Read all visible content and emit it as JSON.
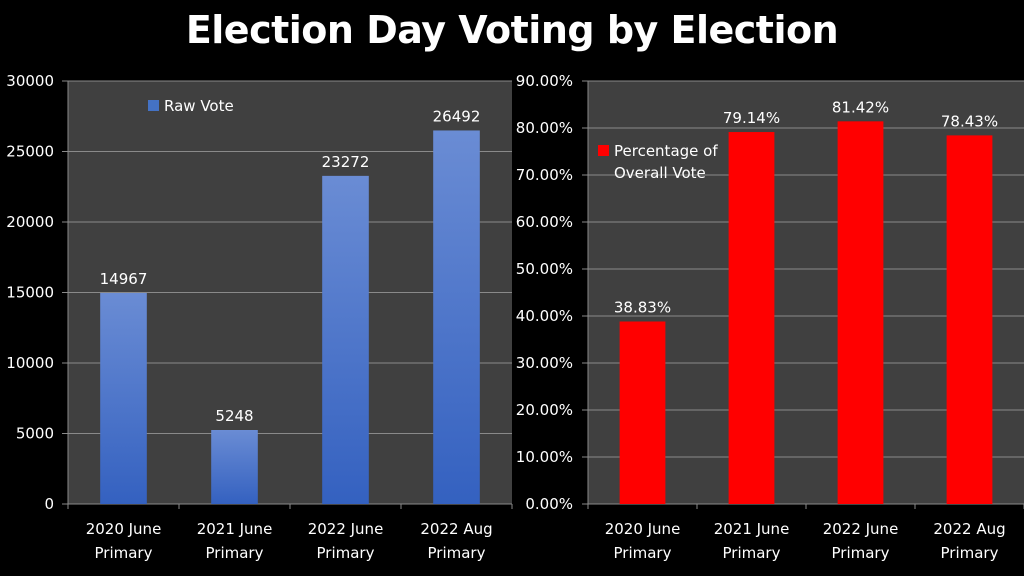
{
  "title": "Election Day Voting by Election",
  "chart_data": [
    {
      "type": "bar",
      "title": "",
      "categories": [
        [
          "2020 June",
          "Primary"
        ],
        [
          "2021 June",
          "Primary"
        ],
        [
          "2022 June",
          "Primary"
        ],
        [
          "2022 Aug",
          "Primary"
        ]
      ],
      "series": [
        {
          "name": "Raw Vote",
          "values": [
            14967,
            5248,
            23272,
            26492
          ],
          "color": "#4472C4"
        }
      ],
      "data_labels": [
        "14967",
        "5248",
        "23272",
        "26492"
      ],
      "yticks": [
        0,
        5000,
        10000,
        15000,
        20000,
        25000,
        30000
      ],
      "ytick_labels": [
        "0",
        "5000",
        "10000",
        "15000",
        "20000",
        "25000",
        "30000"
      ],
      "ylim": [
        0,
        30000
      ],
      "legend": "top-left",
      "grid": true,
      "xlabel": "",
      "ylabel": ""
    },
    {
      "type": "bar",
      "title": "",
      "categories": [
        [
          "2020 June",
          "Primary"
        ],
        [
          "2021 June",
          "Primary"
        ],
        [
          "2022 June",
          "Primary"
        ],
        [
          "2022 Aug",
          "Primary"
        ]
      ],
      "series": [
        {
          "name": "Percentage of Overall Vote",
          "legend_lines": [
            "Percentage of",
            "Overall Vote"
          ],
          "values": [
            38.83,
            79.14,
            81.42,
            78.43
          ],
          "color": "#FF0000"
        }
      ],
      "data_labels": [
        "38.83%",
        "79.14%",
        "81.42%",
        "78.43%"
      ],
      "yticks": [
        0,
        10,
        20,
        30,
        40,
        50,
        60,
        70,
        80,
        90
      ],
      "ytick_labels": [
        "0.00%",
        "10.00%",
        "20.00%",
        "30.00%",
        "40.00%",
        "50.00%",
        "60.00%",
        "70.00%",
        "80.00%",
        "90.00%"
      ],
      "ylim": [
        0,
        90
      ],
      "legend": "top-left",
      "grid": true,
      "xlabel": "",
      "ylabel": ""
    }
  ]
}
